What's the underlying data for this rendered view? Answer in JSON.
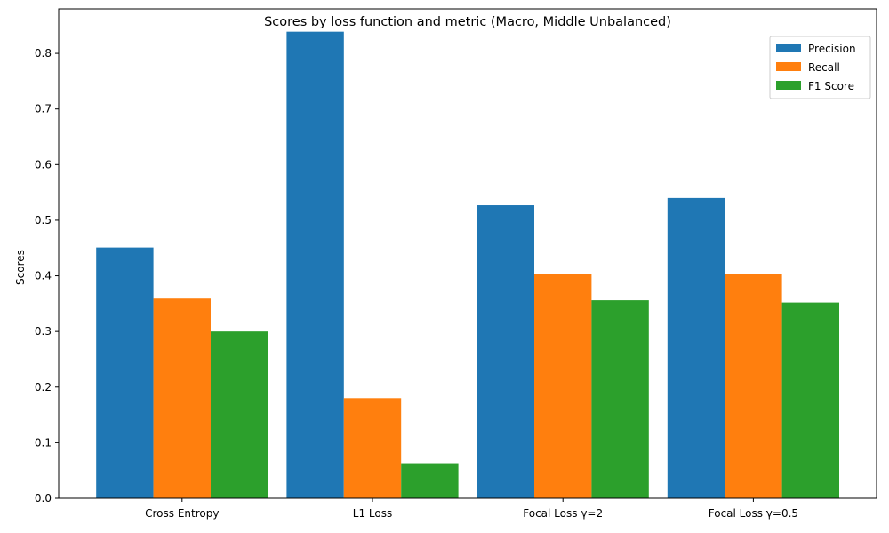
{
  "chart_data": {
    "type": "bar",
    "title": "Scores by loss function and metric (Macro, Middle Unbalanced)",
    "xlabel": "",
    "ylabel": "Scores",
    "categories": [
      "Cross Entropy",
      "L1 Loss",
      "Focal Loss γ=2",
      "Focal Loss γ=0.5"
    ],
    "series": [
      {
        "name": "Precision",
        "color": "#1f77b4",
        "values": [
          0.451,
          0.839,
          0.527,
          0.54
        ]
      },
      {
        "name": "Recall",
        "color": "#ff7f0e",
        "values": [
          0.359,
          0.18,
          0.404,
          0.404
        ]
      },
      {
        "name": "F1 Score",
        "color": "#2ca02c",
        "values": [
          0.3,
          0.063,
          0.356,
          0.352
        ]
      }
    ],
    "ylim": [
      0,
      0.88
    ],
    "yticks": [
      0.0,
      0.1,
      0.2,
      0.3,
      0.4,
      0.5,
      0.6,
      0.7,
      0.8
    ],
    "grid": false,
    "legend_position": "top-right"
  }
}
